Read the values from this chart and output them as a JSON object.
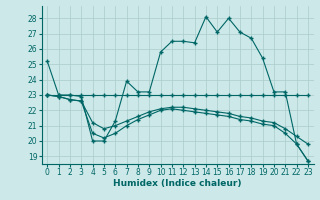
{
  "xlabel": "Humidex (Indice chaleur)",
  "background_color": "#cce8e8",
  "grid_color": "#aacccc",
  "line_color": "#006666",
  "xlim": [
    -0.5,
    23.5
  ],
  "ylim": [
    18.5,
    28.8
  ],
  "yticks": [
    19,
    20,
    21,
    22,
    23,
    24,
    25,
    26,
    27,
    28
  ],
  "xticks": [
    0,
    1,
    2,
    3,
    4,
    5,
    6,
    7,
    8,
    9,
    10,
    11,
    12,
    13,
    14,
    15,
    16,
    17,
    18,
    19,
    20,
    21,
    22,
    23
  ],
  "series": [
    [
      25.2,
      23.0,
      23.0,
      22.9,
      20.0,
      20.0,
      21.3,
      23.9,
      23.2,
      23.2,
      25.8,
      26.5,
      26.5,
      26.4,
      28.1,
      27.1,
      28.0,
      27.1,
      26.7,
      25.4,
      23.2,
      23.2,
      19.8,
      18.7
    ],
    [
      23.0,
      23.0,
      23.0,
      23.0,
      23.0,
      23.0,
      23.0,
      23.0,
      23.0,
      23.0,
      23.0,
      23.0,
      23.0,
      23.0,
      23.0,
      23.0,
      23.0,
      23.0,
      23.0,
      23.0,
      23.0,
      23.0,
      23.0,
      23.0
    ],
    [
      23.0,
      22.9,
      22.7,
      22.6,
      21.2,
      20.8,
      21.0,
      21.3,
      21.6,
      21.9,
      22.1,
      22.2,
      22.2,
      22.1,
      22.0,
      21.9,
      21.8,
      21.6,
      21.5,
      21.3,
      21.2,
      20.8,
      20.3,
      19.8
    ],
    [
      23.0,
      22.9,
      22.7,
      22.6,
      20.5,
      20.2,
      20.5,
      21.0,
      21.4,
      21.7,
      22.0,
      22.1,
      22.0,
      21.9,
      21.8,
      21.7,
      21.6,
      21.4,
      21.3,
      21.1,
      21.0,
      20.5,
      19.8,
      18.7
    ]
  ]
}
